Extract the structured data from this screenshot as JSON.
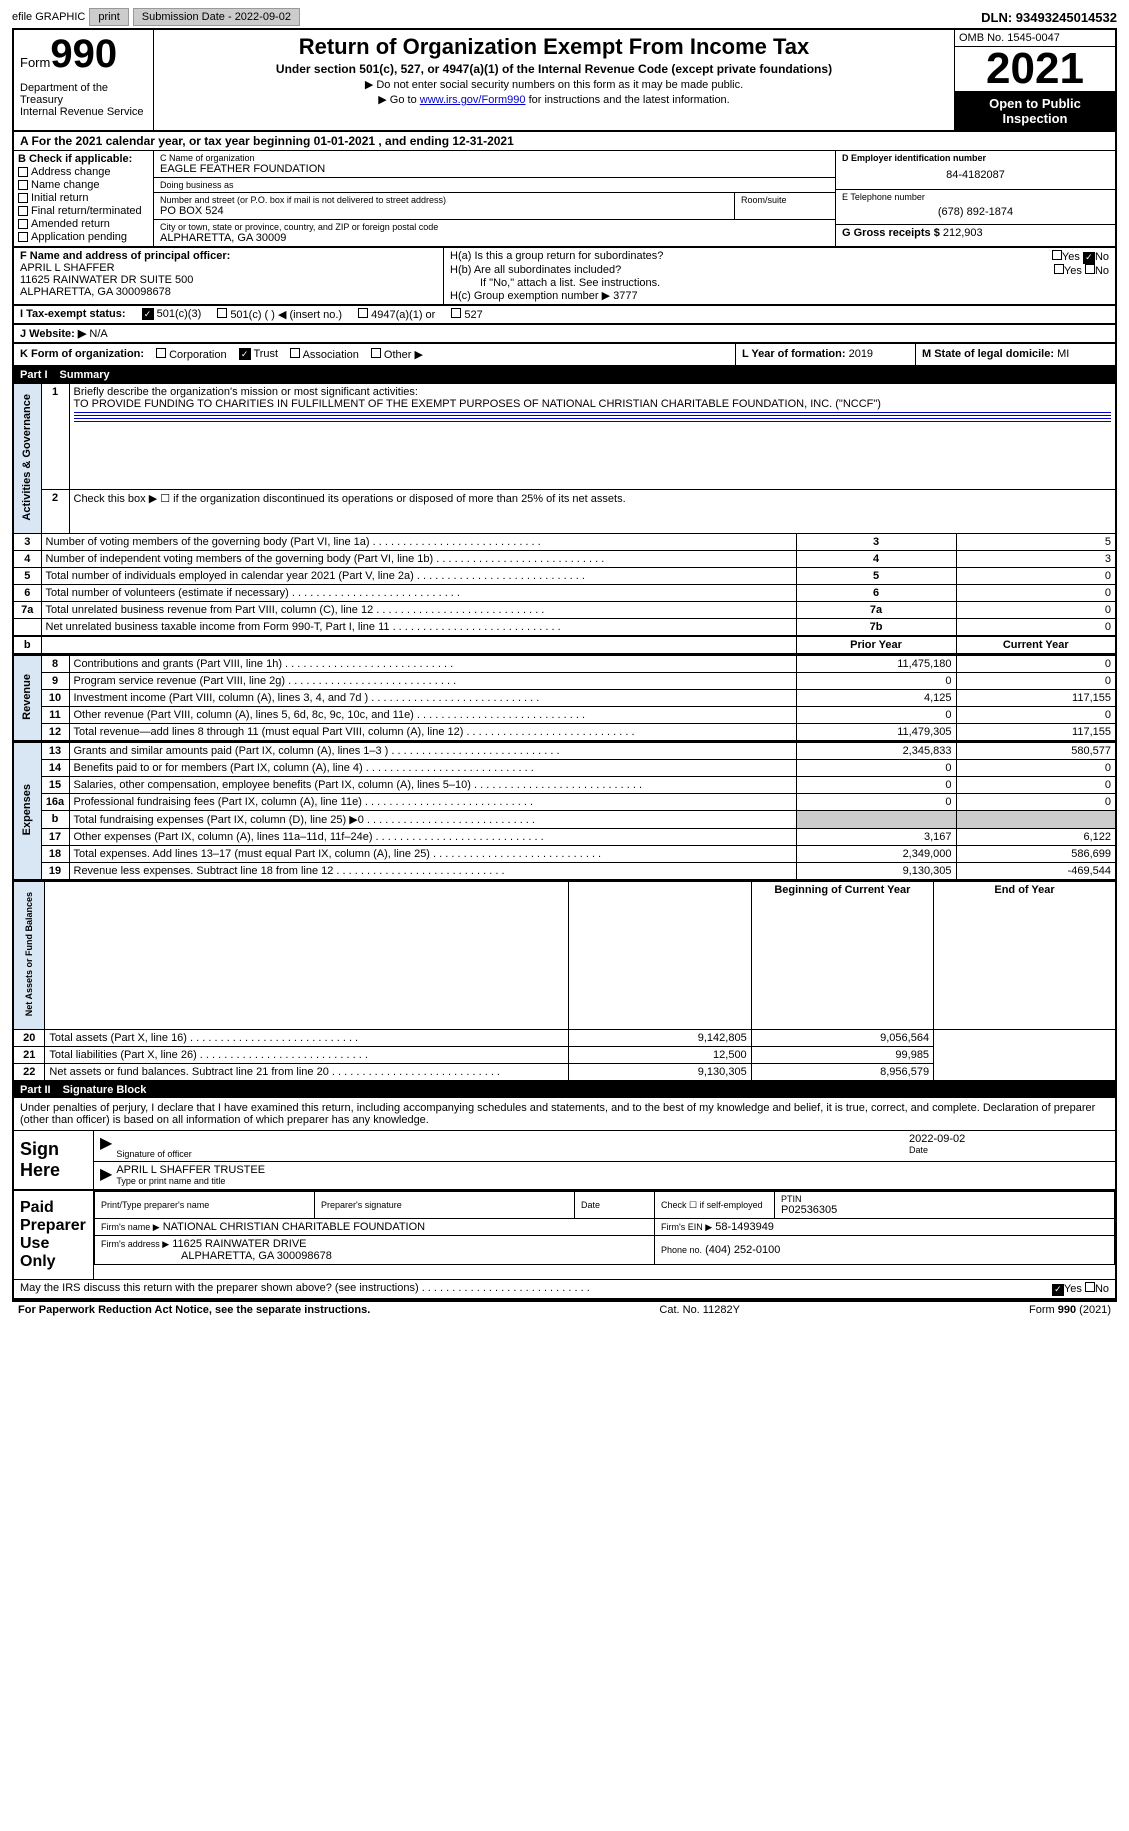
{
  "top": {
    "efile": "efile GRAPHIC",
    "print": "print",
    "sub_label": "Submission Date - 2022-09-02",
    "dln": "DLN: 93493245014532"
  },
  "hdr": {
    "form": "Form",
    "num": "990",
    "dept": "Department of the Treasury\nInternal Revenue Service",
    "title": "Return of Organization Exempt From Income Tax",
    "subtitle": "Under section 501(c), 527, or 4947(a)(1) of the Internal Revenue Code (except private foundations)",
    "note1": "▶ Do not enter social security numbers on this form as it may be made public.",
    "note2_pre": "▶ Go to ",
    "note2_link": "www.irs.gov/Form990",
    "note2_post": " for instructions and the latest information.",
    "omb": "OMB No. 1545-0047",
    "year": "2021",
    "open": "Open to Public Inspection"
  },
  "lineA": "A For the 2021 calendar year, or tax year beginning 01-01-2021   , and ending 12-31-2021",
  "secB": {
    "hdr": "B Check if applicable:",
    "opts": [
      "Address change",
      "Name change",
      "Initial return",
      "Final return/terminated",
      "Amended return",
      "Application pending"
    ]
  },
  "secC": {
    "name_lbl": "C Name of organization",
    "name": "EAGLE FEATHER FOUNDATION",
    "dba_lbl": "Doing business as",
    "dba": "",
    "addr_lbl": "Number and street (or P.O. box if mail is not delivered to street address)",
    "addr": "PO BOX 524",
    "room_lbl": "Room/suite",
    "city_lbl": "City or town, state or province, country, and ZIP or foreign postal code",
    "city": "ALPHARETTA, GA  30009"
  },
  "secD": {
    "ein_lbl": "D Employer identification number",
    "ein": "84-4182087",
    "tel_lbl": "E Telephone number",
    "tel": "(678) 892-1874",
    "gross_lbl": "G Gross receipts $",
    "gross": "212,903"
  },
  "secF": {
    "lbl": "F Name and address of principal officer:",
    "name": "APRIL L SHAFFER",
    "addr1": "11625 RAINWATER DR SUITE 500",
    "addr2": "ALPHARETTA, GA  300098678"
  },
  "secH": {
    "a": "H(a)  Is this a group return for subordinates?",
    "b": "H(b)  Are all subordinates included?",
    "b_note": "If \"No,\" attach a list. See instructions.",
    "c": "H(c)  Group exemption number ▶",
    "c_val": "3777",
    "yes": "Yes",
    "no": "No"
  },
  "taxI": {
    "lbl": "I   Tax-exempt status:",
    "o1": "501(c)(3)",
    "o2": "501(c) (  ) ◀ (insert no.)",
    "o3": "4947(a)(1) or",
    "o4": "527"
  },
  "lineJ": {
    "lbl": "J   Website: ▶",
    "val": "N/A"
  },
  "lineK": {
    "lbl": "K Form of organization:",
    "o1": "Corporation",
    "o2": "Trust",
    "o3": "Association",
    "o4": "Other ▶",
    "l_lbl": "L Year of formation:",
    "l_val": "2019",
    "m_lbl": "M State of legal domicile:",
    "m_val": "MI"
  },
  "part1": {
    "hdr_num": "Part I",
    "hdr_txt": "Summary",
    "q1_lbl": "Briefly describe the organization's mission or most significant activities:",
    "q1_val": "TO PROVIDE FUNDING TO CHARITIES IN FULFILLMENT OF THE EXEMPT PURPOSES OF NATIONAL CHRISTIAN CHARITABLE FOUNDATION, INC. (\"NCCF\")",
    "q2": "Check this box ▶ ☐ if the organization discontinued its operations or disposed of more than 25% of its net assets.",
    "rows_gov": [
      {
        "n": "3",
        "t": "Number of voting members of the governing body (Part VI, line 1a)",
        "rn": "3",
        "v": "5"
      },
      {
        "n": "4",
        "t": "Number of independent voting members of the governing body (Part VI, line 1b)",
        "rn": "4",
        "v": "3"
      },
      {
        "n": "5",
        "t": "Total number of individuals employed in calendar year 2021 (Part V, line 2a)",
        "rn": "5",
        "v": "0"
      },
      {
        "n": "6",
        "t": "Total number of volunteers (estimate if necessary)",
        "rn": "6",
        "v": "0"
      },
      {
        "n": "7a",
        "t": "Total unrelated business revenue from Part VIII, column (C), line 12",
        "rn": "7a",
        "v": "0"
      },
      {
        "n": "",
        "t": "Net unrelated business taxable income from Form 990-T, Part I, line 11",
        "rn": "7b",
        "v": "0"
      }
    ],
    "col_prior": "Prior Year",
    "col_curr": "Current Year",
    "rows_rev": [
      {
        "n": "8",
        "t": "Contributions and grants (Part VIII, line 1h)",
        "p": "11,475,180",
        "c": "0"
      },
      {
        "n": "9",
        "t": "Program service revenue (Part VIII, line 2g)",
        "p": "0",
        "c": "0"
      },
      {
        "n": "10",
        "t": "Investment income (Part VIII, column (A), lines 3, 4, and 7d )",
        "p": "4,125",
        "c": "117,155"
      },
      {
        "n": "11",
        "t": "Other revenue (Part VIII, column (A), lines 5, 6d, 8c, 9c, 10c, and 11e)",
        "p": "0",
        "c": "0"
      },
      {
        "n": "12",
        "t": "Total revenue—add lines 8 through 11 (must equal Part VIII, column (A), line 12)",
        "p": "11,479,305",
        "c": "117,155"
      }
    ],
    "rows_exp": [
      {
        "n": "13",
        "t": "Grants and similar amounts paid (Part IX, column (A), lines 1–3 )",
        "p": "2,345,833",
        "c": "580,577"
      },
      {
        "n": "14",
        "t": "Benefits paid to or for members (Part IX, column (A), line 4)",
        "p": "0",
        "c": "0"
      },
      {
        "n": "15",
        "t": "Salaries, other compensation, employee benefits (Part IX, column (A), lines 5–10)",
        "p": "0",
        "c": "0"
      },
      {
        "n": "16a",
        "t": "Professional fundraising fees (Part IX, column (A), line 11e)",
        "p": "0",
        "c": "0"
      },
      {
        "n": "b",
        "t": "Total fundraising expenses (Part IX, column (D), line 25) ▶0",
        "p": "",
        "c": "",
        "gray": true
      },
      {
        "n": "17",
        "t": "Other expenses (Part IX, column (A), lines 11a–11d, 11f–24e)",
        "p": "3,167",
        "c": "6,122"
      },
      {
        "n": "18",
        "t": "Total expenses. Add lines 13–17 (must equal Part IX, column (A), line 25)",
        "p": "2,349,000",
        "c": "586,699"
      },
      {
        "n": "19",
        "t": "Revenue less expenses. Subtract line 18 from line 12",
        "p": "9,130,305",
        "c": "-469,544"
      }
    ],
    "col_begin": "Beginning of Current Year",
    "col_end": "End of Year",
    "rows_net": [
      {
        "n": "20",
        "t": "Total assets (Part X, line 16)",
        "p": "9,142,805",
        "c": "9,056,564"
      },
      {
        "n": "21",
        "t": "Total liabilities (Part X, line 26)",
        "p": "12,500",
        "c": "99,985"
      },
      {
        "n": "22",
        "t": "Net assets or fund balances. Subtract line 21 from line 20",
        "p": "9,130,305",
        "c": "8,956,579"
      }
    ],
    "side_gov": "Activities & Governance",
    "side_rev": "Revenue",
    "side_exp": "Expenses",
    "side_net": "Net Assets or Fund Balances"
  },
  "part2": {
    "hdr_num": "Part II",
    "hdr_txt": "Signature Block",
    "decl": "Under penalties of perjury, I declare that I have examined this return, including accompanying schedules and statements, and to the best of my knowledge and belief, it is true, correct, and complete. Declaration of preparer (other than officer) is based on all information of which preparer has any knowledge.",
    "sign_here": "Sign Here",
    "sig_officer": "Signature of officer",
    "sig_date": "2022-09-02",
    "date_lbl": "Date",
    "name_title": "APRIL L SHAFFER  TRUSTEE",
    "type_name": "Type or print name and title",
    "paid_prep": "Paid Preparer Use Only",
    "prep_name_lbl": "Print/Type preparer's name",
    "prep_sig_lbl": "Preparer's signature",
    "date2_lbl": "Date",
    "self_emp": "Check ☐ if self-employed",
    "ptin_lbl": "PTIN",
    "ptin": "P02536305",
    "firm_name_lbl": "Firm's name    ▶",
    "firm_name": "NATIONAL CHRISTIAN CHARITABLE FOUNDATION",
    "firm_ein_lbl": "Firm's EIN ▶",
    "firm_ein": "58-1493949",
    "firm_addr_lbl": "Firm's address ▶",
    "firm_addr1": "11625 RAINWATER DRIVE",
    "firm_addr2": "ALPHARETTA, GA  300098678",
    "phone_lbl": "Phone no.",
    "phone": "(404) 252-0100",
    "irs_q": "May the IRS discuss this return with the preparer shown above? (see instructions)",
    "yes": "Yes",
    "no": "No"
  },
  "footer": {
    "left": "For Paperwork Reduction Act Notice, see the separate instructions.",
    "mid": "Cat. No. 11282Y",
    "right": "Form 990 (2021)"
  }
}
